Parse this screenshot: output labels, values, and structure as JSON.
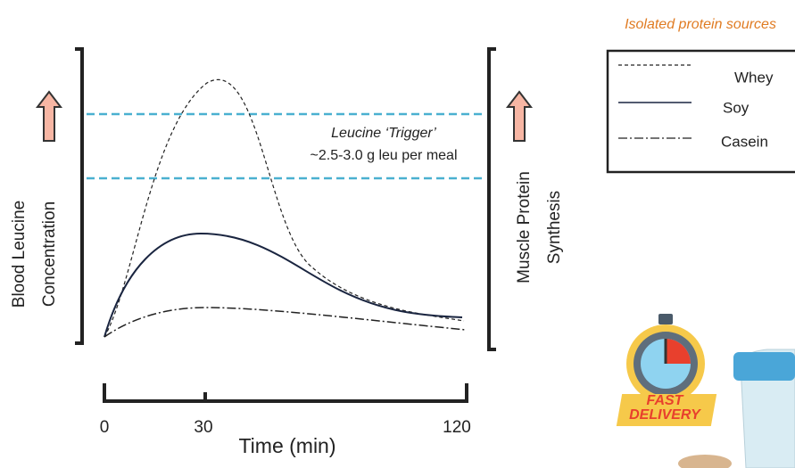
{
  "legend": {
    "title": "Isolated protein sources",
    "items": [
      "Whey",
      "Soy",
      "Casein"
    ]
  },
  "annotation": {
    "title": "Leucine ‘Trigger’",
    "text": "~2.5-3.0 g leu per meal"
  },
  "left_axis": [
    "Blood Leucine",
    "Concentration"
  ],
  "right_axis": [
    "Muscle Protein",
    "Synthesis"
  ],
  "x_axis": {
    "ticks": [
      "0",
      "30",
      "120"
    ],
    "label": "Time (min)"
  },
  "badge": [
    "FAST",
    "DELIVERY"
  ]
}
